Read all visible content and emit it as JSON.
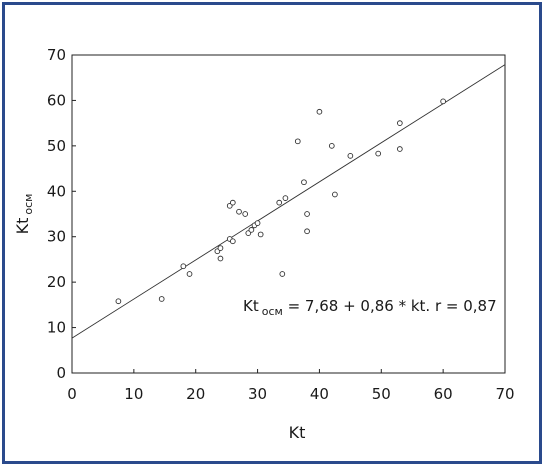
{
  "chart_data": {
    "type": "scatter",
    "xlabel": "Kt",
    "ylabel": "Kt",
    "ylabel_sub": "осм",
    "xlim": [
      0,
      70
    ],
    "ylim": [
      0,
      70
    ],
    "xticks": [
      "0",
      "10",
      "20",
      "30",
      "40",
      "50",
      "60",
      "70"
    ],
    "yticks": [
      "0",
      "10",
      "20",
      "30",
      "40",
      "50",
      "60",
      "70"
    ],
    "grid": false,
    "regression": {
      "intercept": 7.68,
      "slope": 0.86,
      "label_main": "Kt",
      "label_sub": "осм",
      "label_rest": " = 7,68 + 0,86 * kt. r = 0,87"
    },
    "points": [
      {
        "x": 7.5,
        "y": 15.8
      },
      {
        "x": 14.5,
        "y": 16.3
      },
      {
        "x": 18.0,
        "y": 23.5
      },
      {
        "x": 19.0,
        "y": 21.8
      },
      {
        "x": 23.5,
        "y": 26.8
      },
      {
        "x": 24.0,
        "y": 25.2
      },
      {
        "x": 24.0,
        "y": 27.5
      },
      {
        "x": 25.5,
        "y": 36.8
      },
      {
        "x": 25.5,
        "y": 29.5
      },
      {
        "x": 26.0,
        "y": 29.0
      },
      {
        "x": 26.0,
        "y": 37.5
      },
      {
        "x": 27.0,
        "y": 35.5
      },
      {
        "x": 28.0,
        "y": 35.0
      },
      {
        "x": 28.5,
        "y": 30.8
      },
      {
        "x": 29.0,
        "y": 31.5
      },
      {
        "x": 29.5,
        "y": 32.5
      },
      {
        "x": 30.0,
        "y": 33.0
      },
      {
        "x": 30.5,
        "y": 30.5
      },
      {
        "x": 33.5,
        "y": 37.5
      },
      {
        "x": 34.0,
        "y": 21.8
      },
      {
        "x": 34.5,
        "y": 38.5
      },
      {
        "x": 36.5,
        "y": 51.0
      },
      {
        "x": 37.5,
        "y": 42.0
      },
      {
        "x": 38.0,
        "y": 31.2
      },
      {
        "x": 38.0,
        "y": 35.0
      },
      {
        "x": 40.0,
        "y": 57.5
      },
      {
        "x": 42.0,
        "y": 50.0
      },
      {
        "x": 42.5,
        "y": 39.3
      },
      {
        "x": 45.0,
        "y": 47.8
      },
      {
        "x": 49.5,
        "y": 48.3
      },
      {
        "x": 53.0,
        "y": 55.0
      },
      {
        "x": 53.0,
        "y": 49.3
      },
      {
        "x": 60.0,
        "y": 59.8
      }
    ]
  }
}
